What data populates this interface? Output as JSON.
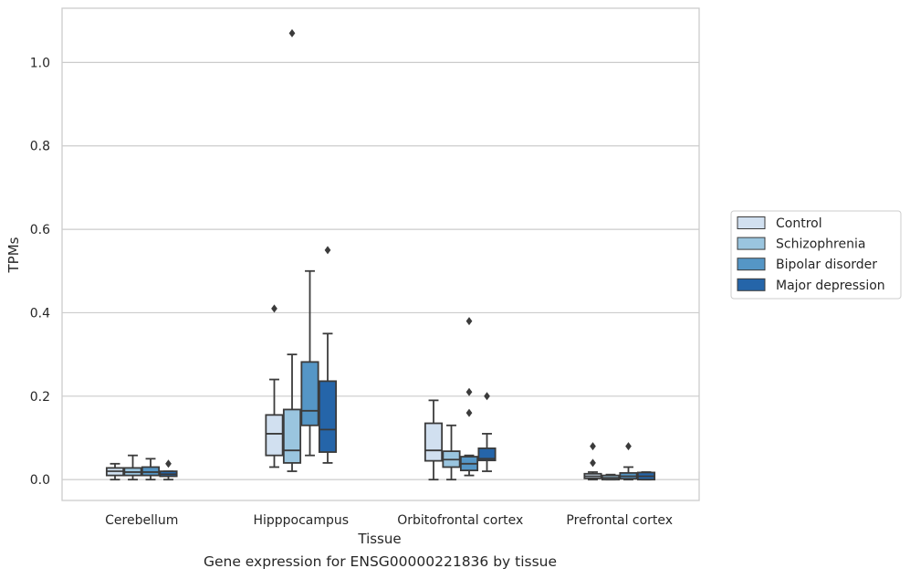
{
  "caption": "Gene expression for ENSG00000221836 by tissue",
  "chart_data": {
    "type": "box",
    "xlabel": "Tissue",
    "ylabel": "TPMs",
    "ylim": [
      -0.05,
      1.13
    ],
    "yticks": [
      0.0,
      0.2,
      0.4,
      0.6,
      0.8,
      1.0
    ],
    "ytick_labels": [
      "0.0",
      "0.2",
      "0.4",
      "0.6",
      "0.8",
      "1.0"
    ],
    "grid": "horizontal",
    "legend_position": "right",
    "categories": [
      "Cerebellum",
      "Hipppocampus",
      "Orbitofrontal cortex",
      "Prefrontal cortex"
    ],
    "series": [
      {
        "name": "Control",
        "color": "#d1e0f0",
        "boxes": [
          {
            "whislo": 0.0,
            "q1": 0.01,
            "med": 0.02,
            "q3": 0.028,
            "whishi": 0.038,
            "fliers": []
          },
          {
            "whislo": 0.03,
            "q1": 0.058,
            "med": 0.11,
            "q3": 0.155,
            "whishi": 0.24,
            "fliers": [
              0.41
            ]
          },
          {
            "whislo": 0.0,
            "q1": 0.045,
            "med": 0.07,
            "q3": 0.135,
            "whishi": 0.19,
            "fliers": []
          },
          {
            "whislo": 0.0,
            "q1": 0.003,
            "med": 0.008,
            "q3": 0.014,
            "whishi": 0.018,
            "fliers": [
              0.04,
              0.08
            ]
          }
        ]
      },
      {
        "name": "Schizophrenia",
        "color": "#9ac5df",
        "boxes": [
          {
            "whislo": 0.0,
            "q1": 0.01,
            "med": 0.018,
            "q3": 0.028,
            "whishi": 0.058,
            "fliers": []
          },
          {
            "whislo": 0.02,
            "q1": 0.04,
            "med": 0.07,
            "q3": 0.168,
            "whishi": 0.3,
            "fliers": [
              1.07
            ]
          },
          {
            "whislo": 0.0,
            "q1": 0.03,
            "med": 0.048,
            "q3": 0.068,
            "whishi": 0.13,
            "fliers": []
          },
          {
            "whislo": 0.0,
            "q1": 0.0,
            "med": 0.004,
            "q3": 0.01,
            "whishi": 0.012,
            "fliers": []
          }
        ]
      },
      {
        "name": "Bipolar disorder",
        "color": "#5596c6",
        "boxes": [
          {
            "whislo": 0.0,
            "q1": 0.01,
            "med": 0.018,
            "q3": 0.03,
            "whishi": 0.05,
            "fliers": []
          },
          {
            "whislo": 0.058,
            "q1": 0.13,
            "med": 0.165,
            "q3": 0.282,
            "whishi": 0.5,
            "fliers": []
          },
          {
            "whislo": 0.01,
            "q1": 0.022,
            "med": 0.038,
            "q3": 0.055,
            "whishi": 0.058,
            "fliers": [
              0.16,
              0.21,
              0.38
            ]
          },
          {
            "whislo": 0.0,
            "q1": 0.002,
            "med": 0.008,
            "q3": 0.016,
            "whishi": 0.03,
            "fliers": [
              0.08
            ]
          }
        ]
      },
      {
        "name": "Major depression",
        "color": "#2565a9",
        "boxes": [
          {
            "whislo": 0.0,
            "q1": 0.008,
            "med": 0.013,
            "q3": 0.02,
            "whishi": 0.02,
            "fliers": [
              0.038
            ]
          },
          {
            "whislo": 0.04,
            "q1": 0.066,
            "med": 0.12,
            "q3": 0.236,
            "whishi": 0.35,
            "fliers": [
              0.55
            ]
          },
          {
            "whislo": 0.02,
            "q1": 0.046,
            "med": 0.05,
            "q3": 0.075,
            "whishi": 0.11,
            "fliers": [
              0.2
            ]
          },
          {
            "whislo": 0.0,
            "q1": 0.0,
            "med": 0.008,
            "q3": 0.017,
            "whishi": 0.018,
            "fliers": []
          }
        ]
      }
    ]
  }
}
